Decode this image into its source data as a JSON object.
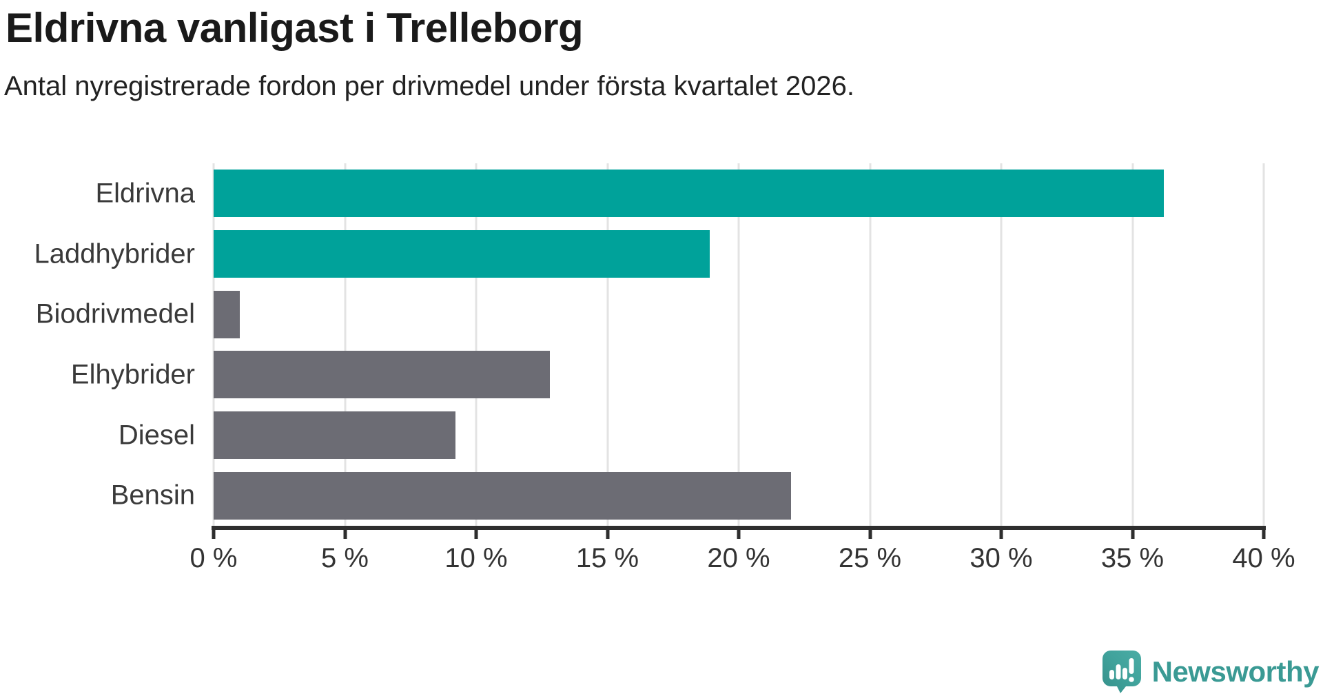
{
  "header": {
    "title": "Eldrivna vanligast i Trelleborg",
    "subtitle": "Antal nyregistrerade fordon per drivmedel under första kvartalet 2026."
  },
  "chart_data": {
    "type": "bar",
    "orientation": "horizontal",
    "title": "Eldrivna vanligast i Trelleborg",
    "subtitle": "Antal nyregistrerade fordon per drivmedel under första kvartalet 2026.",
    "categories": [
      "Eldrivna",
      "Laddhybrider",
      "Biodrivmedel",
      "Elhybrider",
      "Diesel",
      "Bensin"
    ],
    "values": [
      36.2,
      18.9,
      1.0,
      12.8,
      9.2,
      22.0
    ],
    "unit": "%",
    "bar_colors": [
      "#00a29a",
      "#00a29a",
      "#6c6c74",
      "#6c6c74",
      "#6c6c74",
      "#6c6c74"
    ],
    "highlight_color": "#00a29a",
    "default_color": "#6c6c74",
    "xlim": [
      0,
      40
    ],
    "x_ticks": [
      0,
      5,
      10,
      15,
      20,
      25,
      30,
      35,
      40
    ],
    "x_tick_labels": [
      "0 %",
      "5 %",
      "10 %",
      "15 %",
      "20 %",
      "25 %",
      "30 %",
      "35 %",
      "40 %"
    ],
    "grid": true,
    "legend": "none",
    "xlabel": "",
    "ylabel": ""
  },
  "footer": {
    "brand": "Newsworthy",
    "brand_color": "#3a9a94",
    "logo_color": "#41a39c",
    "logo_color_dark": "#35908a"
  }
}
